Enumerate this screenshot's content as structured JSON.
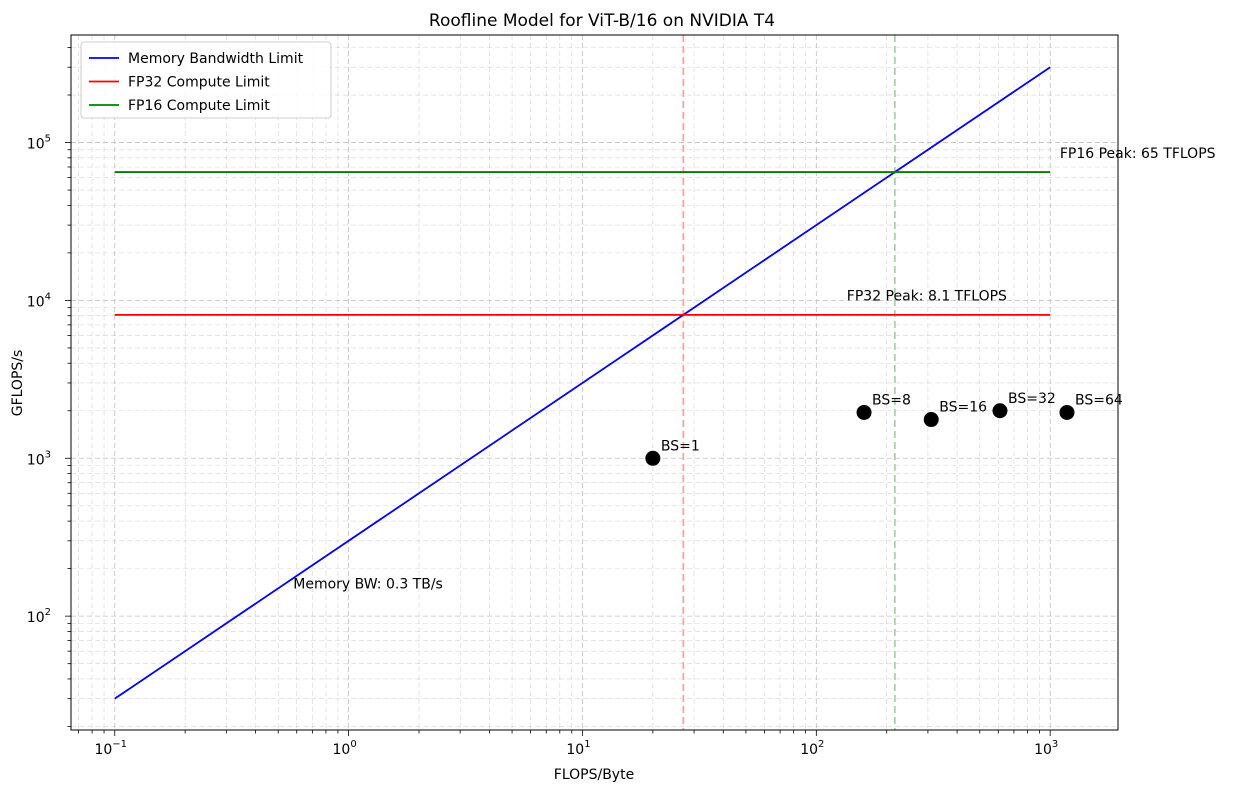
{
  "chart_data": {
    "type": "line",
    "title": "Roofline Model for ViT-B/16 on NVIDIA T4",
    "xlabel": "FLOPS/Byte",
    "ylabel": "GFLOPS/s",
    "xscale": "log",
    "yscale": "log",
    "xlim": [
      0.065,
      1950
    ],
    "ylim": [
      19,
      480000
    ],
    "x_ticks": [
      {
        "value": 0.1,
        "base": "10",
        "exp": "−1"
      },
      {
        "value": 1,
        "base": "10",
        "exp": "0"
      },
      {
        "value": 10,
        "base": "10",
        "exp": "1"
      },
      {
        "value": 100,
        "base": "10",
        "exp": "2"
      },
      {
        "value": 1000,
        "base": "10",
        "exp": "3"
      }
    ],
    "y_ticks": [
      {
        "value": 100,
        "base": "10",
        "exp": "2"
      },
      {
        "value": 1000,
        "base": "10",
        "exp": "3"
      },
      {
        "value": 10000,
        "base": "10",
        "exp": "4"
      },
      {
        "value": 100000,
        "base": "10",
        "exp": "5"
      }
    ],
    "grid": true,
    "legend_position": "top-left",
    "series": [
      {
        "name": "Memory Bandwidth Limit",
        "color": "#0000ff",
        "x": [
          0.1,
          1000
        ],
        "y": [
          30,
          300000
        ]
      },
      {
        "name": "FP32 Compute Limit",
        "color": "#ff0000",
        "x": [
          0.1,
          1000
        ],
        "y": [
          8100,
          8100
        ]
      },
      {
        "name": "FP16 Compute Limit",
        "color": "#008000",
        "x": [
          0.1,
          1000
        ],
        "y": [
          65000,
          65000
        ]
      }
    ],
    "ridge_lines": [
      {
        "x": 27,
        "color": "#f4a6a6"
      },
      {
        "x": 216.7,
        "color": "#a6d4a6"
      }
    ],
    "points": [
      {
        "label": "BS=1",
        "x": 20,
        "y": 1000
      },
      {
        "label": "BS=8",
        "x": 160,
        "y": 1950
      },
      {
        "label": "BS=16",
        "x": 310,
        "y": 1760
      },
      {
        "label": "BS=32",
        "x": 610,
        "y": 2000
      },
      {
        "label": "BS=64",
        "x": 1180,
        "y": 1950
      }
    ],
    "annotations": [
      {
        "text": "FP16 Peak: 65 TFLOPS",
        "x": 1100,
        "y": 80000
      },
      {
        "text": "FP32 Peak: 8.1 TFLOPS",
        "x": 135,
        "y": 10000
      },
      {
        "text": "Memory BW: 0.3 TB/s",
        "x": 0.58,
        "y": 150
      }
    ]
  }
}
